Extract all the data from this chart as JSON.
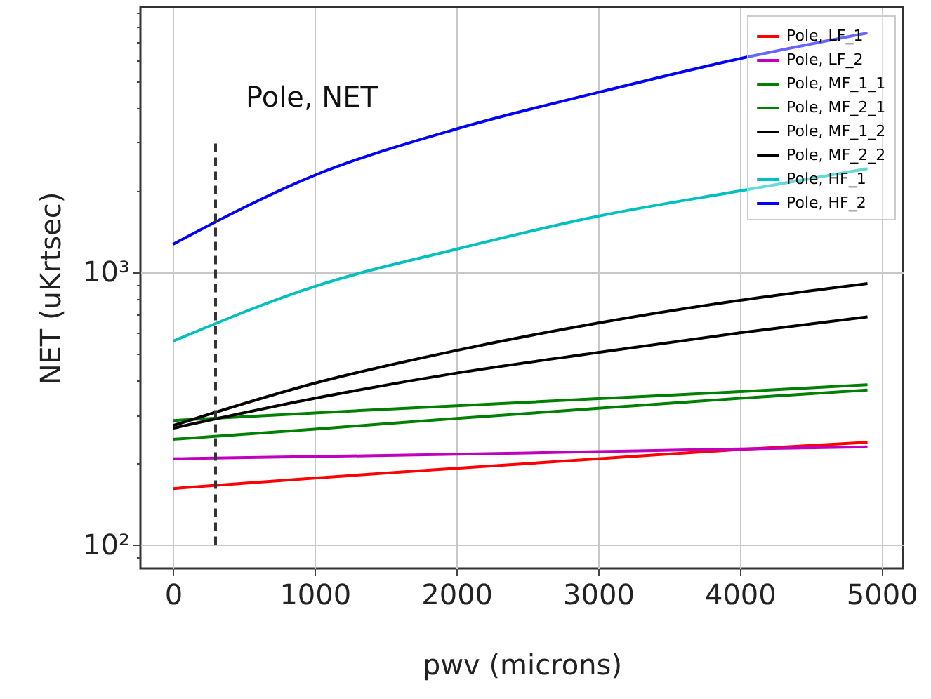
{
  "chart_data": {
    "type": "line",
    "xlabel": "pwv (microns)",
    "ylabel": "NET (uKrtsec)",
    "annotations": [
      "Pole, NET"
    ],
    "x": [
      0,
      1000,
      2000,
      3000,
      4000,
      4900
    ],
    "series": [
      {
        "name": "Pole, LF_1",
        "color": "#ff0000",
        "values": [
          161,
          176,
          191,
          207,
          224,
          238
        ]
      },
      {
        "name": "Pole, LF_2",
        "color": "#bf00bf",
        "values": [
          207,
          211,
          215,
          220,
          225,
          229
        ]
      },
      {
        "name": "Pole, MF_1_1",
        "color": "#008000",
        "values": [
          286,
          305,
          324,
          344,
          365,
          387
        ]
      },
      {
        "name": "Pole, MF_2_1",
        "color": "#008000",
        "values": [
          244,
          266,
          291,
          317,
          345,
          370
        ]
      },
      {
        "name": "Pole, MF_1_2",
        "color": "#000000",
        "values": [
          274,
          392,
          517,
          652,
          789,
          910
        ]
      },
      {
        "name": "Pole, MF_2_2",
        "color": "#000000",
        "values": [
          268,
          345,
          427,
          508,
          600,
          687
        ]
      },
      {
        "name": "Pole, HF_1",
        "color": "#00bfbf",
        "values": [
          559,
          888,
          1216,
          1607,
          1990,
          2400
        ]
      },
      {
        "name": "Pole, HF_2",
        "color": "#0000ff",
        "values": [
          1268,
          2270,
          3357,
          4570,
          6080,
          7550
        ]
      },
      {
        "type": "line",
        "x": [
          300,
          300
        ],
        "color": "#333333",
        "line_style": "dashed",
        "values": [
          100,
          3000
        ]
      }
    ],
    "xlim": [
      -230,
      5150
    ],
    "xticks": [
      0,
      1000,
      2000,
      3000,
      4000,
      5000
    ],
    "ylim": [
      82,
      9400
    ],
    "log": true,
    "yticks": [
      {
        "value": 90,
        "label": null
      },
      {
        "value": 100,
        "label": "10²"
      },
      {
        "value": 200,
        "label": null
      },
      {
        "value": 300,
        "label": null
      },
      {
        "value": 400,
        "label": null
      },
      {
        "value": 500,
        "label": null
      },
      {
        "value": 600,
        "label": null
      },
      {
        "value": 700,
        "label": null
      },
      {
        "value": 800,
        "label": null
      },
      {
        "value": 900,
        "label": null
      },
      {
        "value": 1000,
        "label": "10³"
      },
      {
        "value": 2000,
        "label": null
      },
      {
        "value": 3000,
        "label": null
      },
      {
        "value": 4000,
        "label": null
      },
      {
        "value": 5000,
        "label": null
      },
      {
        "value": 6000,
        "label": null
      },
      {
        "value": 7000,
        "label": null
      },
      {
        "value": 8000,
        "label": null
      },
      {
        "value": 9000,
        "label": null
      }
    ],
    "grid": true,
    "legend": "top right"
  }
}
